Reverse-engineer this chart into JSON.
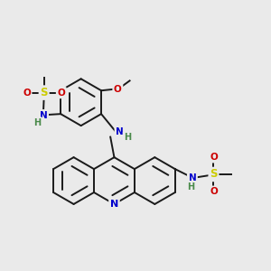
{
  "bg_color": "#eaeaea",
  "bond_color": "#1a1a1a",
  "bond_lw": 1.4,
  "dbo": 0.018,
  "colors": {
    "N": "#0000cc",
    "O": "#cc0000",
    "S": "#cccc00",
    "H": "#4a8a4a",
    "C": "#1a1a1a"
  },
  "figsize": [
    3.0,
    3.0
  ],
  "dpi": 100,
  "xlim": [
    0.0,
    1.0
  ],
  "ylim": [
    0.0,
    1.0
  ]
}
